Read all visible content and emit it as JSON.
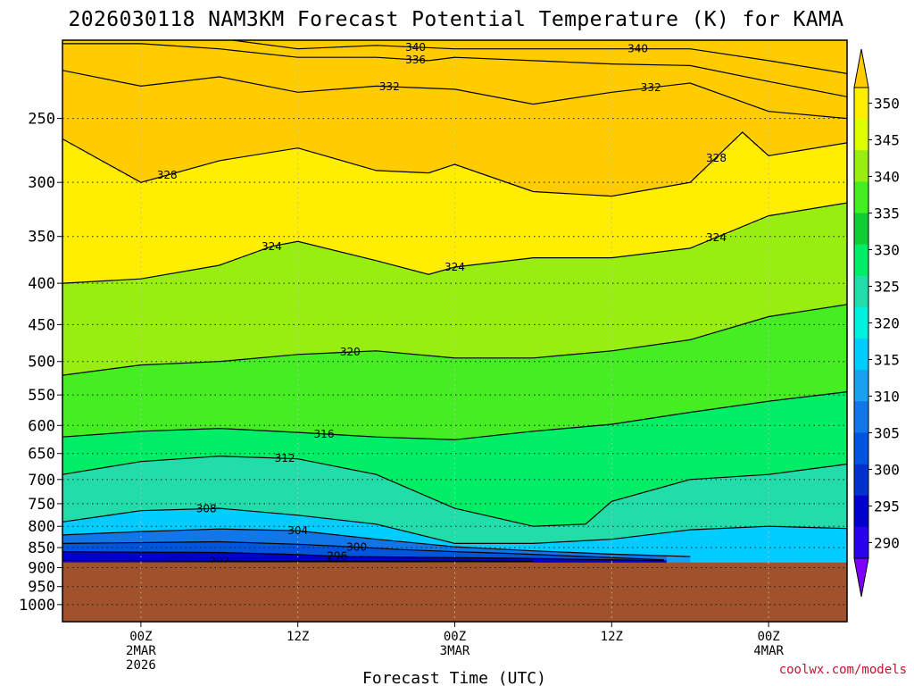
{
  "chart_data": {
    "type": "heatmap",
    "title": "2026030118 NAM3KM Forecast Potential Temperature (K) for KAMA",
    "xlabel": "Forecast Time (UTC)",
    "ylabel": "",
    "credit": "coolwx.com/models",
    "x_range_hours": [
      0,
      60
    ],
    "y_range_hPa": [
      200,
      1050
    ],
    "x_ticks": [
      {
        "hour": 6,
        "lines": [
          "00Z",
          "2MAR",
          "2026"
        ]
      },
      {
        "hour": 18,
        "lines": [
          "12Z"
        ]
      },
      {
        "hour": 30,
        "lines": [
          "00Z",
          "3MAR"
        ]
      },
      {
        "hour": 42,
        "lines": [
          "12Z"
        ]
      },
      {
        "hour": 54,
        "lines": [
          "00Z",
          "4MAR"
        ]
      }
    ],
    "y_ticks": [
      250,
      300,
      350,
      400,
      450,
      500,
      550,
      600,
      650,
      700,
      750,
      800,
      850,
      900,
      950,
      1000
    ],
    "colorbar": {
      "labels": [
        290,
        295,
        300,
        305,
        310,
        315,
        320,
        325,
        330,
        335,
        340,
        345,
        350
      ],
      "colors": [
        "#7f00ff",
        "#2a00ee",
        "#0000cc",
        "#0033cc",
        "#0055dd",
        "#1177e8",
        "#1aa0f0",
        "#00ccff",
        "#00f0e0",
        "#22ddaa",
        "#00ee66",
        "#11cc33",
        "#44ee22",
        "#99ee11",
        "#ddff00",
        "#ffee00",
        "#ffcc00"
      ]
    },
    "ground": {
      "color": "#a0522d",
      "surface_pressure_hPa": 887
    },
    "contours": [
      {
        "theta": 292,
        "points": [
          [
            0,
            882
          ],
          [
            8,
            883
          ],
          [
            16,
            884
          ],
          [
            24,
            884
          ],
          [
            30,
            884
          ],
          [
            36,
            884
          ]
        ],
        "label_at": 12
      },
      {
        "theta": 296,
        "points": [
          [
            0,
            860
          ],
          [
            6,
            861
          ],
          [
            12,
            862
          ],
          [
            17,
            866
          ],
          [
            22,
            872
          ],
          [
            28,
            874
          ],
          [
            34,
            876
          ],
          [
            40,
            879
          ],
          [
            46,
            882
          ]
        ],
        "label_at": 21
      },
      {
        "theta": 300,
        "points": [
          [
            0,
            840
          ],
          [
            6,
            838
          ],
          [
            12,
            836
          ],
          [
            18,
            842
          ],
          [
            22,
            848
          ],
          [
            26,
            855
          ],
          [
            30,
            860
          ],
          [
            34,
            864
          ],
          [
            40,
            872
          ],
          [
            46,
            880
          ]
        ],
        "label_at": 22.5
      },
      {
        "theta": 304,
        "points": [
          [
            0,
            820
          ],
          [
            6,
            812
          ],
          [
            12,
            806
          ],
          [
            18,
            810
          ],
          [
            24,
            830
          ],
          [
            30,
            848
          ],
          [
            36,
            858
          ],
          [
            42,
            866
          ],
          [
            48,
            872
          ]
        ],
        "label_at": 18
      },
      {
        "theta": 308,
        "points": [
          [
            0,
            790
          ],
          [
            6,
            765
          ],
          [
            12,
            760
          ],
          [
            18,
            775
          ],
          [
            24,
            795
          ],
          [
            30,
            840
          ],
          [
            36,
            840
          ],
          [
            42,
            830
          ],
          [
            48,
            808
          ],
          [
            54,
            800
          ],
          [
            60,
            805
          ]
        ],
        "label_at": 11
      },
      {
        "theta": 312,
        "points": [
          [
            0,
            690
          ],
          [
            6,
            665
          ],
          [
            12,
            655
          ],
          [
            18,
            660
          ],
          [
            24,
            690
          ],
          [
            30,
            760
          ],
          [
            36,
            800
          ],
          [
            40,
            795
          ],
          [
            42,
            745
          ],
          [
            48,
            700
          ],
          [
            54,
            690
          ],
          [
            60,
            670
          ]
        ],
        "label_at": 17
      },
      {
        "theta": 316,
        "points": [
          [
            0,
            620
          ],
          [
            6,
            610
          ],
          [
            12,
            605
          ],
          [
            18,
            612
          ],
          [
            24,
            620
          ],
          [
            30,
            625
          ],
          [
            36,
            610
          ],
          [
            42,
            598
          ],
          [
            48,
            578
          ],
          [
            54,
            560
          ],
          [
            60,
            545
          ]
        ],
        "label_at": 20
      },
      {
        "theta": 320,
        "points": [
          [
            0,
            520
          ],
          [
            6,
            505
          ],
          [
            12,
            500
          ],
          [
            18,
            490
          ],
          [
            24,
            485
          ],
          [
            30,
            495
          ],
          [
            36,
            495
          ],
          [
            42,
            485
          ],
          [
            48,
            470
          ],
          [
            54,
            440
          ],
          [
            60,
            425
          ]
        ],
        "label_at": 22
      },
      {
        "theta": 324,
        "points": [
          [
            0,
            400
          ],
          [
            6,
            395
          ],
          [
            12,
            380
          ],
          [
            16,
            360
          ],
          [
            18,
            355
          ],
          [
            24,
            375
          ],
          [
            28,
            390
          ],
          [
            30,
            382
          ],
          [
            36,
            372
          ],
          [
            42,
            372
          ],
          [
            48,
            362
          ],
          [
            54,
            330
          ],
          [
            60,
            318
          ]
        ],
        "label_at": 16,
        "label_at2": 30,
        "label_at3": 50
      },
      {
        "theta": 328,
        "points": [
          [
            0,
            265
          ],
          [
            6,
            300
          ],
          [
            12,
            282
          ],
          [
            18,
            272
          ],
          [
            24,
            290
          ],
          [
            28,
            292
          ],
          [
            30,
            285
          ],
          [
            36,
            308
          ],
          [
            42,
            312
          ],
          [
            48,
            300
          ],
          [
            52,
            260
          ],
          [
            54,
            278
          ],
          [
            60,
            268
          ]
        ],
        "label_at": 8,
        "label_at2": 50
      },
      {
        "theta": 332,
        "points": [
          [
            0,
            218
          ],
          [
            6,
            228
          ],
          [
            12,
            222
          ],
          [
            18,
            232
          ],
          [
            24,
            228
          ],
          [
            30,
            230
          ],
          [
            36,
            240
          ],
          [
            42,
            232
          ],
          [
            48,
            226
          ],
          [
            54,
            245
          ],
          [
            60,
            250
          ]
        ],
        "label_at": 25,
        "label_at2": 45
      },
      {
        "theta": 336,
        "points": [
          [
            0,
            202
          ],
          [
            6,
            202
          ],
          [
            12,
            205
          ],
          [
            18,
            210
          ],
          [
            24,
            210
          ],
          [
            28,
            212
          ],
          [
            30,
            210
          ],
          [
            36,
            212
          ],
          [
            42,
            214
          ],
          [
            48,
            215
          ],
          [
            54,
            225
          ],
          [
            60,
            235
          ]
        ],
        "label_at": 27
      },
      {
        "theta": 340,
        "points": [
          [
            13,
            200
          ],
          [
            18,
            205
          ],
          [
            24,
            203
          ],
          [
            30,
            205
          ],
          [
            36,
            205
          ],
          [
            42,
            205
          ],
          [
            48,
            205
          ],
          [
            54,
            212
          ],
          [
            60,
            220
          ]
        ],
        "label_at": 27,
        "label_at2": 44
      }
    ]
  }
}
